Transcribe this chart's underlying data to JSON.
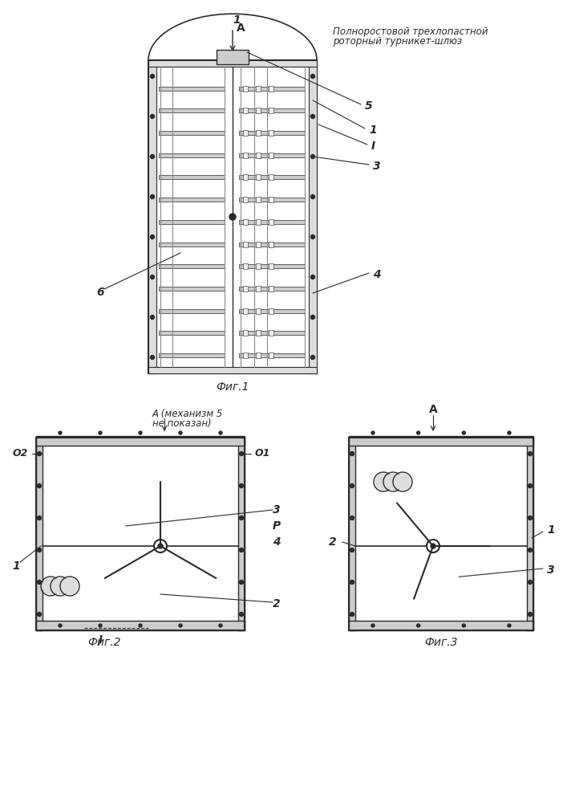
{
  "bg_color": "#ffffff",
  "line_color": "#2a2a2a",
  "light_gray": "#aaaaaa",
  "mid_gray": "#888888",
  "fig1_title": "Полноростовой трехлопастной",
  "fig1_title2": "роторный турникет-шлюз",
  "caption1": "Фиг.1",
  "caption2": "Фиг.2",
  "caption3": "Фиг.3"
}
